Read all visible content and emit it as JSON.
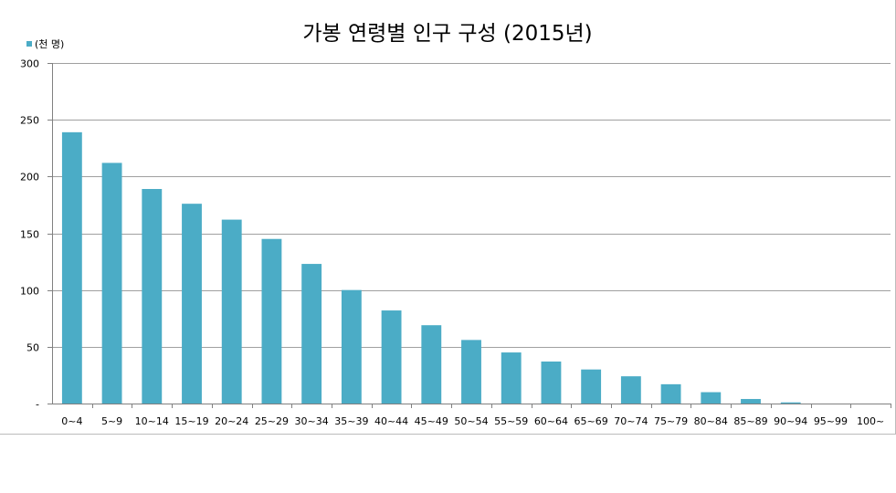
{
  "chart_data": {
    "type": "bar",
    "title": "가봉 연령별 인구 구성 (2015년)",
    "legend": {
      "label": "(천 명)",
      "position": "top-left"
    },
    "categories": [
      "0~4",
      "5~9",
      "10~14",
      "15~19",
      "20~24",
      "25~29",
      "30~34",
      "35~39",
      "40~44",
      "45~49",
      "50~54",
      "55~59",
      "60~64",
      "65~69",
      "70~74",
      "75~79",
      "80~84",
      "85~89",
      "90~94",
      "95~99",
      "100~"
    ],
    "series": [
      {
        "name": "(천 명)",
        "values": [
          239,
          212,
          189,
          176,
          162,
          145,
          123,
          100,
          82,
          69,
          56,
          45,
          37,
          30,
          24,
          17,
          10,
          4,
          1,
          0,
          0
        ]
      }
    ],
    "ylim": [
      0,
      300
    ],
    "yticks": [
      0,
      50,
      100,
      150,
      200,
      250,
      300
    ],
    "ytick_labels": [
      "-",
      "50",
      "100",
      "150",
      "200",
      "250",
      "300"
    ],
    "grid": true,
    "colors": {
      "bar": "#4bacc6",
      "grid": "#a0a0a0",
      "axis": "#808080"
    }
  }
}
